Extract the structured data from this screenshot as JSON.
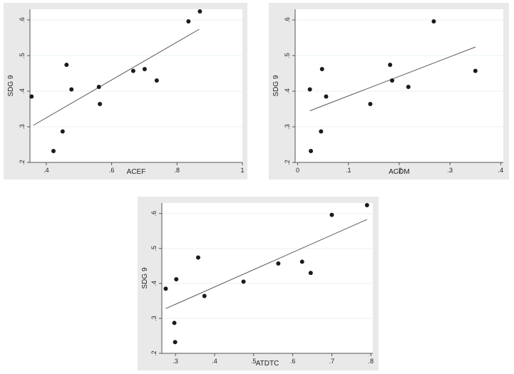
{
  "chart_data": [
    {
      "type": "scatter",
      "xlabel": "ACEF",
      "ylabel": "SDG 9",
      "xlim": [
        0.35,
        1.0
      ],
      "ylim": [
        0.2,
        0.63
      ],
      "xticks": [
        0.4,
        0.6,
        0.8,
        1.0
      ],
      "xtick_labels": [
        ".4",
        ".6",
        ".8",
        "1"
      ],
      "yticks": [
        0.2,
        0.3,
        0.4,
        0.5,
        0.6
      ],
      "ytick_labels": [
        ".2",
        ".3",
        ".4",
        ".5",
        ".6"
      ],
      "grid": "horizontal",
      "points": [
        {
          "x": 0.355,
          "y": 0.385
        },
        {
          "x": 0.422,
          "y": 0.232
        },
        {
          "x": 0.45,
          "y": 0.287
        },
        {
          "x": 0.462,
          "y": 0.474
        },
        {
          "x": 0.477,
          "y": 0.405
        },
        {
          "x": 0.561,
          "y": 0.412
        },
        {
          "x": 0.564,
          "y": 0.364
        },
        {
          "x": 0.666,
          "y": 0.457
        },
        {
          "x": 0.701,
          "y": 0.462
        },
        {
          "x": 0.738,
          "y": 0.43
        },
        {
          "x": 0.835,
          "y": 0.596
        },
        {
          "x": 0.87,
          "y": 0.624
        }
      ],
      "fit_line": {
        "x": [
          0.36,
          0.868
        ],
        "y": [
          0.304,
          0.574
        ]
      }
    },
    {
      "type": "scatter",
      "xlabel": "ACDM",
      "ylabel": "SDG 9",
      "xlim": [
        -0.005,
        0.405
      ],
      "ylim": [
        0.2,
        0.63
      ],
      "xticks": [
        0,
        0.1,
        0.2,
        0.3,
        0.4
      ],
      "xtick_labels": [
        "0",
        ".1",
        ".2",
        ".3",
        ".4"
      ],
      "yticks": [
        0.2,
        0.3,
        0.4,
        0.5,
        0.6
      ],
      "ytick_labels": [
        ".2",
        ".3",
        ".4",
        ".5",
        ".6"
      ],
      "grid": "horizontal",
      "points": [
        {
          "x": 0.024,
          "y": 0.405
        },
        {
          "x": 0.026,
          "y": 0.232
        },
        {
          "x": 0.046,
          "y": 0.287
        },
        {
          "x": 0.048,
          "y": 0.462
        },
        {
          "x": 0.056,
          "y": 0.385
        },
        {
          "x": 0.143,
          "y": 0.364
        },
        {
          "x": 0.182,
          "y": 0.474
        },
        {
          "x": 0.186,
          "y": 0.43
        },
        {
          "x": 0.218,
          "y": 0.412
        },
        {
          "x": 0.268,
          "y": 0.596
        },
        {
          "x": 0.35,
          "y": 0.457
        }
      ],
      "fit_line": {
        "x": [
          0.024,
          0.35
        ],
        "y": [
          0.345,
          0.524
        ]
      }
    },
    {
      "type": "scatter",
      "xlabel": "ATDTC",
      "ylabel": "SDG 9",
      "xlim": [
        0.265,
        0.805
      ],
      "ylim": [
        0.2,
        0.63
      ],
      "xticks": [
        0.3,
        0.4,
        0.5,
        0.6,
        0.7,
        0.8
      ],
      "xtick_labels": [
        ".3",
        ".4",
        ".5",
        ".6",
        ".7",
        ".8"
      ],
      "yticks": [
        0.2,
        0.3,
        0.4,
        0.5,
        0.6
      ],
      "ytick_labels": [
        ".2",
        ".3",
        ".4",
        ".5",
        ".6"
      ],
      "grid": "horizontal",
      "points": [
        {
          "x": 0.275,
          "y": 0.385
        },
        {
          "x": 0.297,
          "y": 0.287
        },
        {
          "x": 0.299,
          "y": 0.232
        },
        {
          "x": 0.302,
          "y": 0.412
        },
        {
          "x": 0.358,
          "y": 0.474
        },
        {
          "x": 0.374,
          "y": 0.364
        },
        {
          "x": 0.474,
          "y": 0.405
        },
        {
          "x": 0.563,
          "y": 0.457
        },
        {
          "x": 0.624,
          "y": 0.462
        },
        {
          "x": 0.646,
          "y": 0.43
        },
        {
          "x": 0.7,
          "y": 0.596
        },
        {
          "x": 0.79,
          "y": 0.624
        }
      ],
      "fit_line": {
        "x": [
          0.275,
          0.79
        ],
        "y": [
          0.328,
          0.583
        ]
      }
    }
  ]
}
